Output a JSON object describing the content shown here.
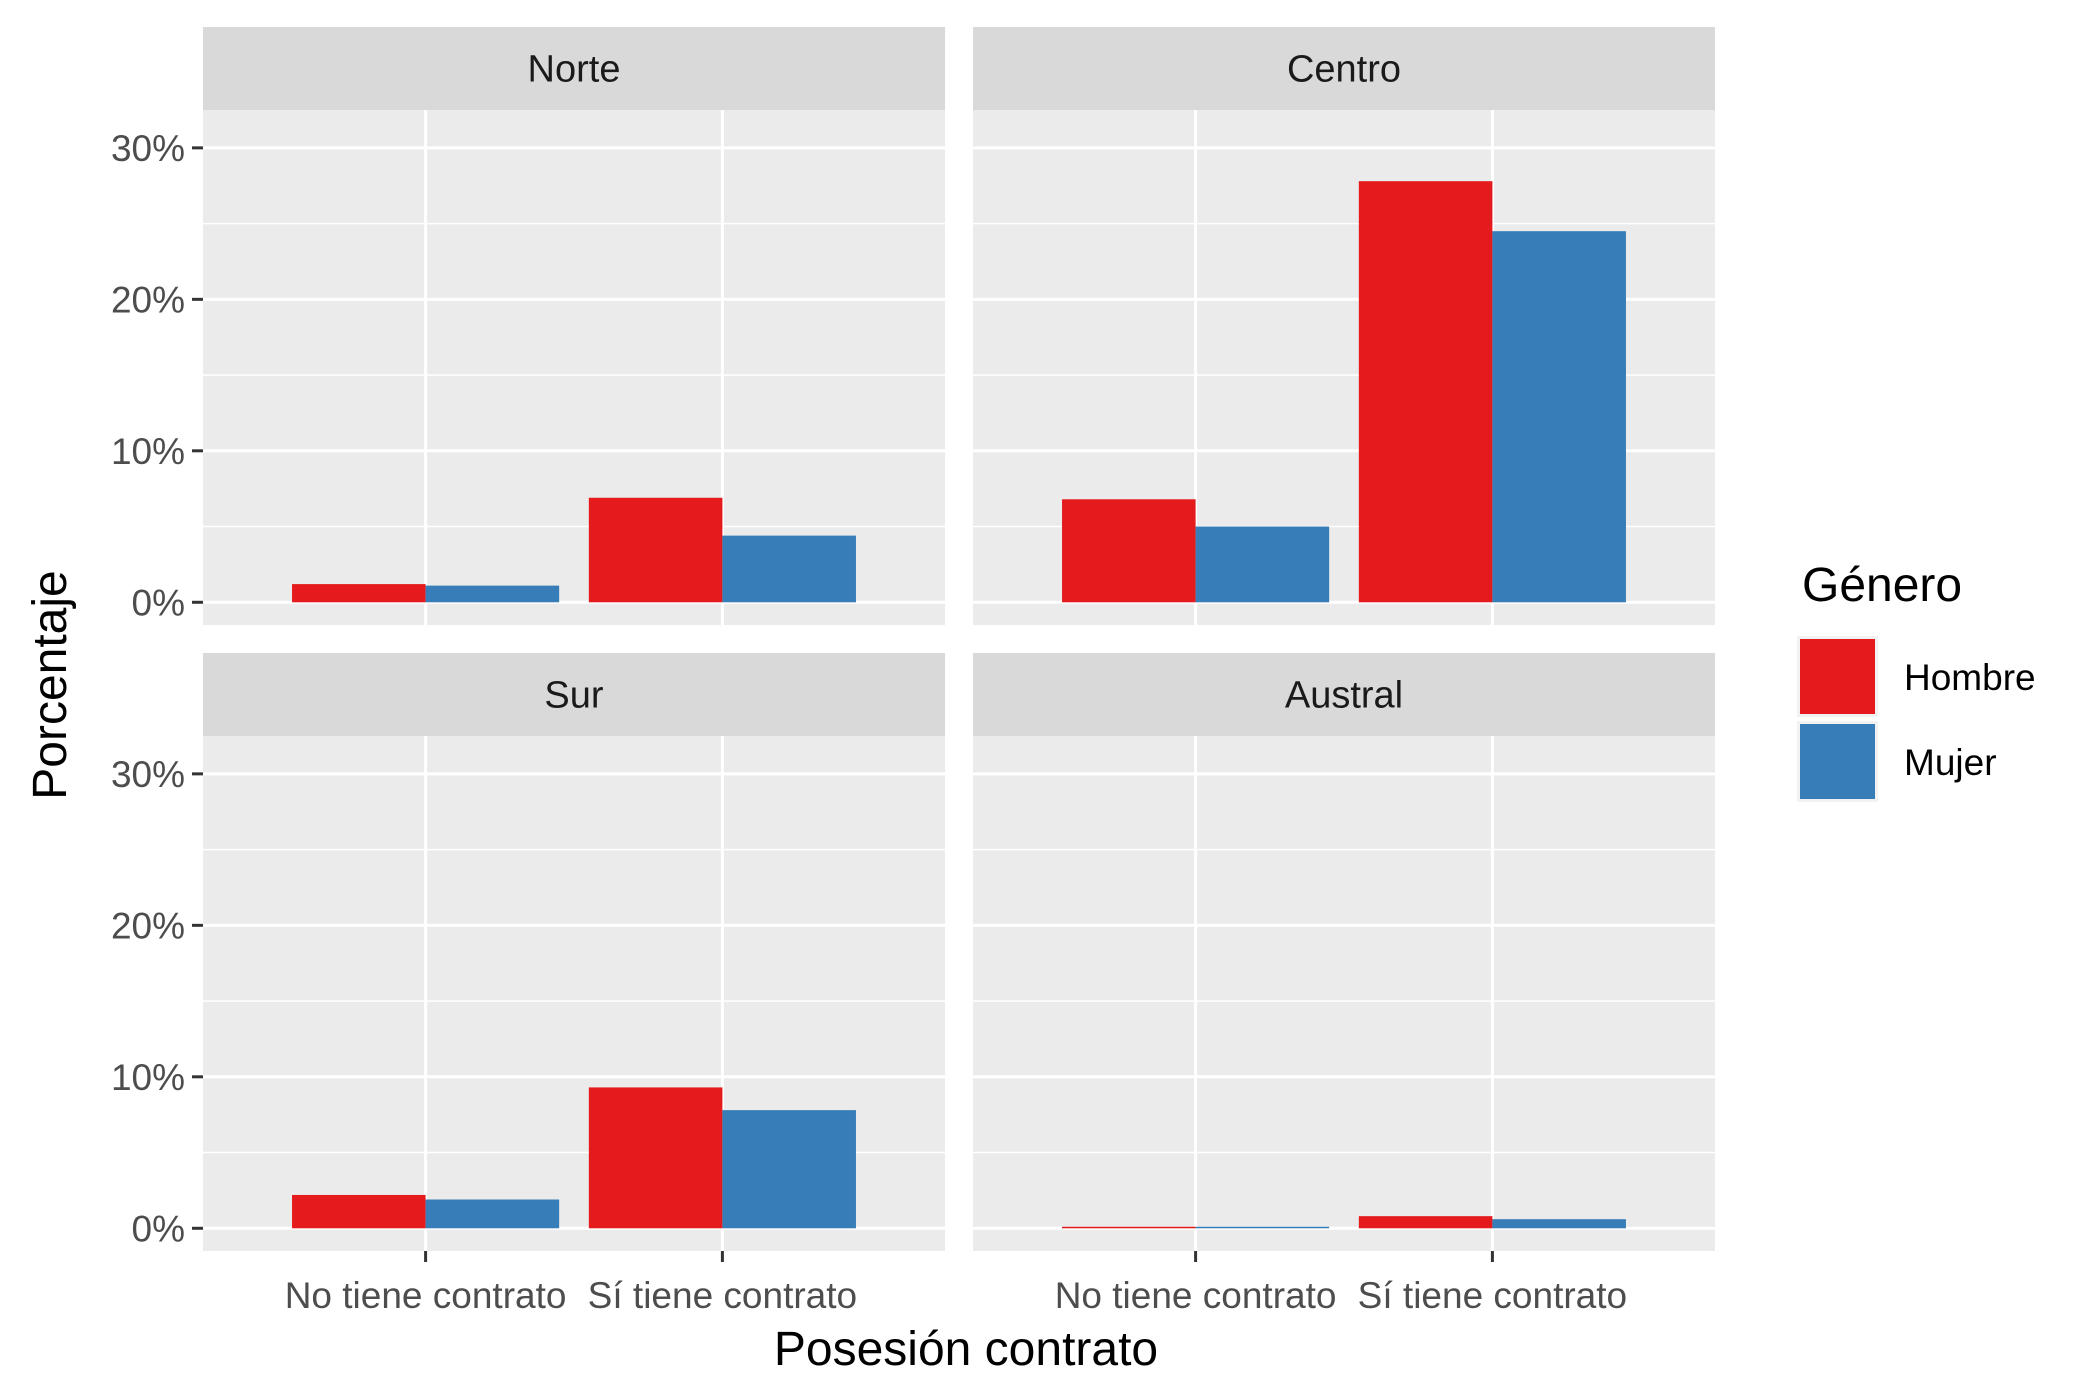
{
  "chart_data": {
    "type": "bar",
    "facets": [
      {
        "title": "Norte",
        "series": [
          {
            "name": "Hombre",
            "values": [
              1.2,
              6.9
            ]
          },
          {
            "name": "Mujer",
            "values": [
              1.1,
              4.4
            ]
          }
        ]
      },
      {
        "title": "Centro",
        "series": [
          {
            "name": "Hombre",
            "values": [
              6.8,
              27.8
            ]
          },
          {
            "name": "Mujer",
            "values": [
              5.0,
              24.5
            ]
          }
        ]
      },
      {
        "title": "Sur",
        "series": [
          {
            "name": "Hombre",
            "values": [
              2.2,
              9.3
            ]
          },
          {
            "name": "Mujer",
            "values": [
              1.9,
              7.8
            ]
          }
        ]
      },
      {
        "title": "Austral",
        "series": [
          {
            "name": "Hombre",
            "values": [
              0.1,
              0.8
            ]
          },
          {
            "name": "Mujer",
            "values": [
              0.1,
              0.6
            ]
          }
        ]
      }
    ],
    "categories": [
      "No tiene contrato",
      "Sí tiene contrato"
    ],
    "xlabel": "Posesión contrato",
    "ylabel": "Porcentaje",
    "yticks": [
      0,
      10,
      20,
      30
    ],
    "ytick_labels": [
      "0%",
      "10%",
      "20%",
      "30%"
    ],
    "ylim": [
      -1.5,
      32.5
    ],
    "grid": true,
    "legend": {
      "title": "Género",
      "position": "right",
      "entries": [
        {
          "label": "Hombre",
          "color": "#e41a1c"
        },
        {
          "label": "Mujer",
          "color": "#377eb8"
        }
      ]
    },
    "colors": {
      "Hombre": "#e41a1c",
      "Mujer": "#377eb8"
    }
  }
}
